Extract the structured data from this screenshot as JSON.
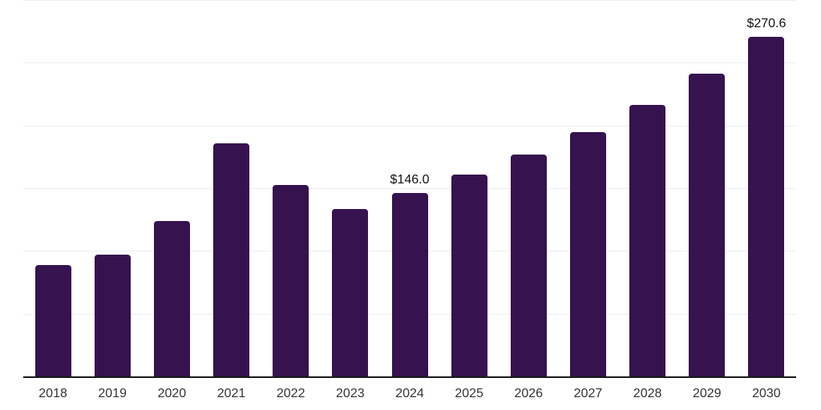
{
  "chart_data": {
    "type": "bar",
    "title": "",
    "xlabel": "",
    "ylabel": "",
    "categories": [
      "2018",
      "2019",
      "2020",
      "2021",
      "2022",
      "2023",
      "2024",
      "2025",
      "2026",
      "2027",
      "2028",
      "2029",
      "2030"
    ],
    "values": [
      88.9,
      96.9,
      123.7,
      185.9,
      152.5,
      133.7,
      146.0,
      160.6,
      176.6,
      194.5,
      216.7,
      241.0,
      270.6
    ],
    "point_labels": {
      "2024": "$146.0",
      "2030": "$270.6"
    },
    "ylim": [
      0,
      300
    ],
    "gridline_values": [
      50,
      100,
      150,
      200,
      250,
      300
    ],
    "y_tick_labels_visible": false,
    "grid": "horizontal",
    "legend": "none",
    "colors": {
      "bar": "#36124E",
      "axis_line": "#1a1a1a",
      "gridline": "#efefef",
      "tick_label": "#333333",
      "data_label": "#111111",
      "background": "#ffffff"
    }
  }
}
